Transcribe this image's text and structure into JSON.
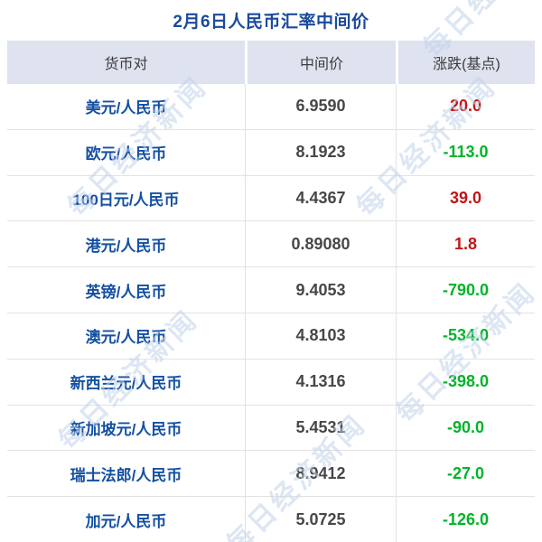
{
  "title": "2月6日人民币汇率中间价",
  "watermark": {
    "text": "每日经济新闻"
  },
  "colors": {
    "title_blue": "#1a4a9c",
    "pair_blue": "#1450a2",
    "header_bg": "#dfe2ef",
    "header_text": "#3c3c3c",
    "value_text": "#474747",
    "up_red": "#c21616",
    "down_green": "#00b428",
    "grid_line": "#e2e2e2",
    "watermark_blue": "#c3d2eb"
  },
  "table": {
    "columns": [
      {
        "label": "货币对"
      },
      {
        "label": "中间价"
      },
      {
        "label": "涨跌(基点)"
      }
    ],
    "rows": [
      {
        "pair": "美元/人民币",
        "mid": "6.9590",
        "change": "20.0",
        "direction": "up"
      },
      {
        "pair": "欧元/人民币",
        "mid": "8.1923",
        "change": "-113.0",
        "direction": "down"
      },
      {
        "pair": "100日元/人民币",
        "mid": "4.4367",
        "change": "39.0",
        "direction": "up"
      },
      {
        "pair": "港元/人民币",
        "mid": "0.89080",
        "change": "1.8",
        "direction": "up"
      },
      {
        "pair": "英镑/人民币",
        "mid": "9.4053",
        "change": "-790.0",
        "direction": "down"
      },
      {
        "pair": "澳元/人民币",
        "mid": "4.8103",
        "change": "-534.0",
        "direction": "down"
      },
      {
        "pair": "新西兰元/人民币",
        "mid": "4.1316",
        "change": "-398.0",
        "direction": "down"
      },
      {
        "pair": "新加坡元/人民币",
        "mid": "5.4531",
        "change": "-90.0",
        "direction": "down"
      },
      {
        "pair": "瑞士法郎/人民币",
        "mid": "8.9412",
        "change": "-27.0",
        "direction": "down"
      },
      {
        "pair": "加元/人民币",
        "mid": "5.0725",
        "change": "-126.0",
        "direction": "down"
      }
    ]
  }
}
